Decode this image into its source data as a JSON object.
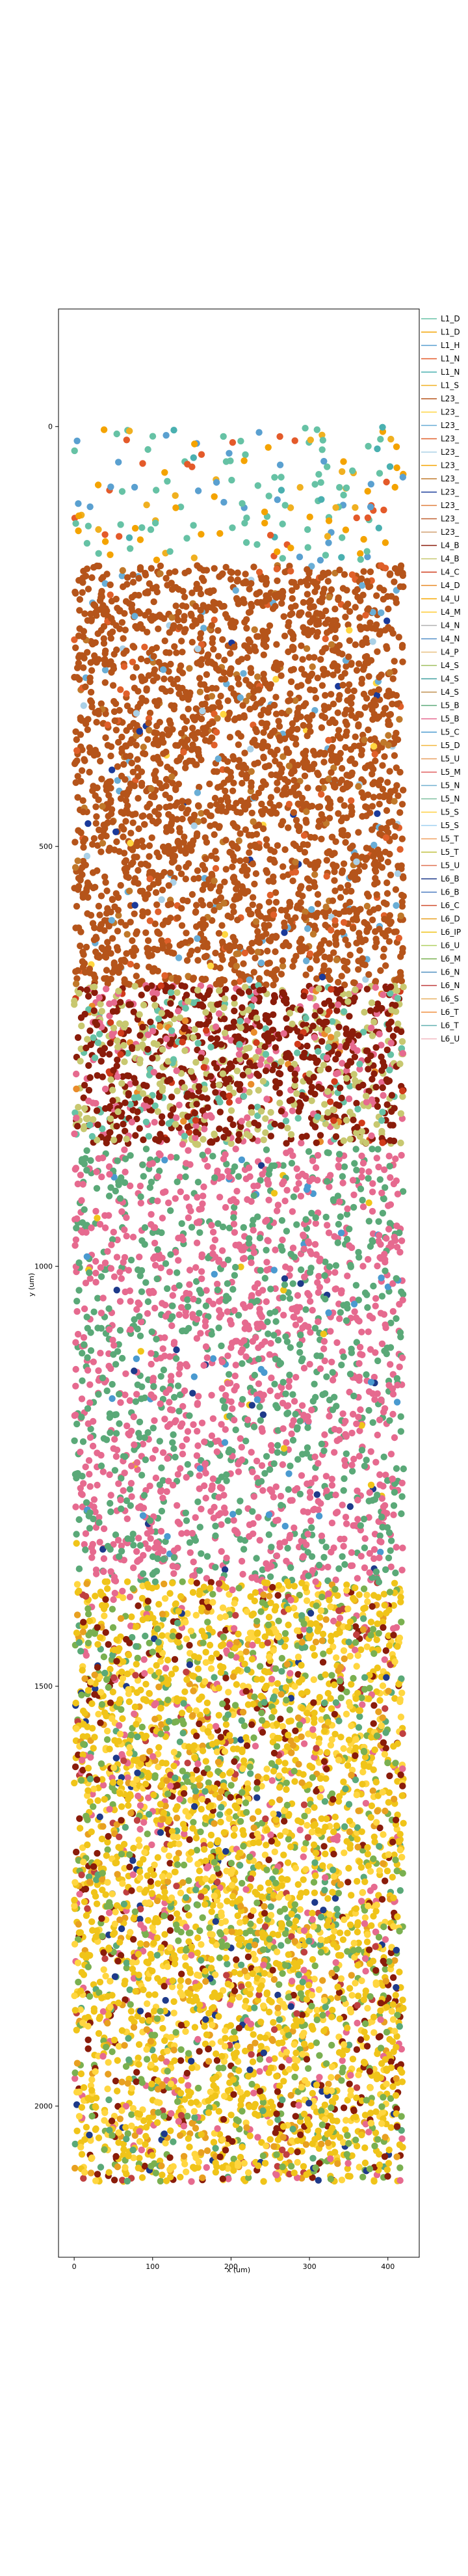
{
  "chart_data": {
    "type": "scatter",
    "title": "",
    "xlabel": "x (um)",
    "ylabel": "y (um)",
    "xlim": [
      -20,
      440
    ],
    "ylim": [
      -140,
      2180
    ],
    "y_inverted": true,
    "grid": false,
    "legend_placement": "outside-right",
    "x_ticks": [
      "0",
      "100",
      "200",
      "300",
      "400"
    ],
    "y_ticks": [
      "0",
      "500",
      "1000",
      "1500",
      "2000"
    ],
    "colors": {
      "L1": "#66c2a5",
      "L23": "#b5541a",
      "L4": "#8a1c0a",
      "L5": "#5aa978",
      "L6": "#f0c419"
    },
    "series": [
      {
        "name": "L1_D",
        "color": "#66c2a5"
      },
      {
        "name": "L1_D",
        "color": "#f4a300"
      },
      {
        "name": "L1_H",
        "color": "#5aa0d0"
      },
      {
        "name": "L1_N",
        "color": "#e45a2a"
      },
      {
        "name": "L1_N",
        "color": "#4ab0b0"
      },
      {
        "name": "L1_S",
        "color": "#f0b020"
      },
      {
        "name": "L23_",
        "color": "#b5541a"
      },
      {
        "name": "L23_",
        "color": "#ffd640"
      },
      {
        "name": "L23_",
        "color": "#6aaed6"
      },
      {
        "name": "L23_",
        "color": "#e0602a"
      },
      {
        "name": "L23_",
        "color": "#aad0e6"
      },
      {
        "name": "L23_",
        "color": "#f4a300"
      },
      {
        "name": "L23_",
        "color": "#c0782a"
      },
      {
        "name": "L23_",
        "color": "#1a3a9a"
      },
      {
        "name": "L23_",
        "color": "#e08040"
      },
      {
        "name": "L23_",
        "color": "#c06030"
      },
      {
        "name": "L23_",
        "color": "#d2a070"
      },
      {
        "name": "L4_B",
        "color": "#8a1c0a"
      },
      {
        "name": "L4_B",
        "color": "#c8c870"
      },
      {
        "name": "L4_C",
        "color": "#d03a1a"
      },
      {
        "name": "L4_D",
        "color": "#e98c2a"
      },
      {
        "name": "L4_U",
        "color": "#f6a800"
      },
      {
        "name": "L4_M",
        "color": "#ffcc33"
      },
      {
        "name": "L4_N",
        "color": "#b0b0b0"
      },
      {
        "name": "L4_N",
        "color": "#5590c8"
      },
      {
        "name": "L4_P",
        "color": "#e8c080"
      },
      {
        "name": "L4_S",
        "color": "#a0c060"
      },
      {
        "name": "L4_S",
        "color": "#40a0a0"
      },
      {
        "name": "L4_S",
        "color": "#c09050"
      },
      {
        "name": "L5_B",
        "color": "#5aa978"
      },
      {
        "name": "L5_B",
        "color": "#e66a8f"
      },
      {
        "name": "L5_C",
        "color": "#4a9ad0"
      },
      {
        "name": "L5_D",
        "color": "#f2b840"
      },
      {
        "name": "L5_U",
        "color": "#e8a060"
      },
      {
        "name": "L5_M",
        "color": "#e06060"
      },
      {
        "name": "L5_N",
        "color": "#70b0d0"
      },
      {
        "name": "L5_N",
        "color": "#80c0a0"
      },
      {
        "name": "L5_S",
        "color": "#ffd040"
      },
      {
        "name": "L5_S",
        "color": "#a0d0f0"
      },
      {
        "name": "L5_T",
        "color": "#f0a060"
      },
      {
        "name": "L5_T",
        "color": "#c0c040"
      },
      {
        "name": "L5_U",
        "color": "#e07050"
      },
      {
        "name": "L6_B",
        "color": "#1e3a8a"
      },
      {
        "name": "L6_B",
        "color": "#4a7ac0"
      },
      {
        "name": "L6_C",
        "color": "#d05030"
      },
      {
        "name": "L6_D",
        "color": "#e8a020"
      },
      {
        "name": "L6_IP",
        "color": "#f0c419"
      },
      {
        "name": "L6_U",
        "color": "#b0d060"
      },
      {
        "name": "L6_M",
        "color": "#7ab050"
      },
      {
        "name": "L6_N",
        "color": "#5090c0"
      },
      {
        "name": "L6_N",
        "color": "#c04040"
      },
      {
        "name": "L6_S",
        "color": "#e8b060"
      },
      {
        "name": "L6_T",
        "color": "#f09040"
      },
      {
        "name": "L6_T",
        "color": "#60b0b0"
      },
      {
        "name": "L6_U",
        "color": "#f4b8c0"
      }
    ],
    "layers": [
      {
        "name": "L1",
        "y_range": [
          0,
          160
        ],
        "approx_count": 180,
        "palette": [
          "#66c2a5",
          "#f4a300",
          "#5aa0d0",
          "#e45a2a",
          "#4ab0b0",
          "#f0b020"
        ],
        "weights": [
          5,
          3,
          2,
          2,
          1,
          1
        ]
      },
      {
        "name": "L23",
        "y_range": [
          165,
          665
        ],
        "approx_count": 2600,
        "palette": [
          "#b5541a",
          "#c0782a",
          "#e0602a",
          "#6aaed6",
          "#1a3a9a",
          "#aad0e6",
          "#ffd640"
        ],
        "weights": [
          90,
          4,
          3,
          2,
          0.5,
          1,
          0.5
        ]
      },
      {
        "name": "L4",
        "y_range": [
          665,
          855
        ],
        "approx_count": 1300,
        "palette": [
          "#8a1c0a",
          "#c8c870",
          "#e66a8f",
          "#66c2a5",
          "#d03a1a",
          "#e98c2a"
        ],
        "weights": [
          45,
          25,
          15,
          8,
          4,
          3
        ]
      },
      {
        "name": "L5",
        "y_range": [
          860,
          1375
        ],
        "approx_count": 1900,
        "palette": [
          "#e66a8f",
          "#5aa978",
          "#4a9ad0",
          "#1e3a8a",
          "#f0c419"
        ],
        "weights": [
          55,
          40,
          2,
          1,
          1
        ]
      },
      {
        "name": "L6",
        "y_range": [
          1375,
          2090
        ],
        "approx_count": 4200,
        "palette": [
          "#f0c419",
          "#ffd640",
          "#7ab050",
          "#8a1c0a",
          "#e66a8f",
          "#e8a020",
          "#1e3a8a",
          "#5aa978",
          "#c04040"
        ],
        "weights": [
          38,
          18,
          12,
          8,
          6,
          7,
          2,
          5,
          3
        ]
      }
    ]
  }
}
